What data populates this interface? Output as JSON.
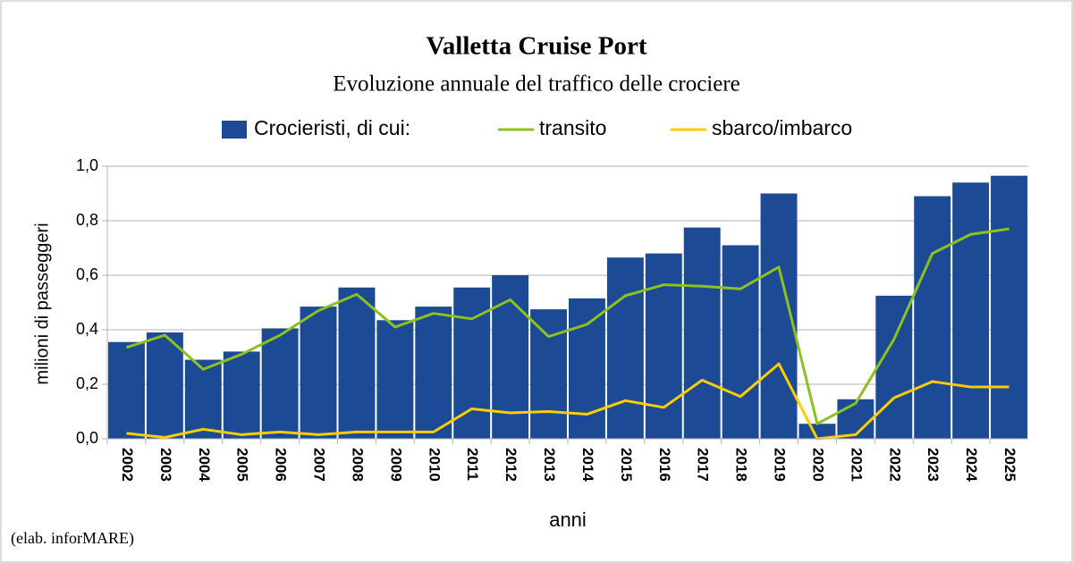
{
  "chart_data": {
    "type": "bar",
    "title": "Valletta Cruise Port",
    "subtitle": "Evoluzione annuale del traffico delle crociere",
    "y_label": "milioni di passeggeri",
    "x_label": "anni",
    "source": "(elab. inforMARE)",
    "categories": [
      "2002",
      "2003",
      "2004",
      "2005",
      "2006",
      "2007",
      "2008",
      "2009",
      "2010",
      "2011",
      "2012",
      "2013",
      "2014",
      "2015",
      "2016",
      "2017",
      "2018",
      "2019",
      "2020",
      "2021",
      "2022",
      "2023",
      "2024",
      "2025"
    ],
    "series": [
      {
        "name": "Crocieristi, di cui:",
        "type": "bar",
        "color": "#1c4a94",
        "values": [
          0.355,
          0.39,
          0.29,
          0.32,
          0.405,
          0.485,
          0.555,
          0.435,
          0.485,
          0.555,
          0.6,
          0.475,
          0.515,
          0.665,
          0.68,
          0.775,
          0.71,
          0.9,
          0.055,
          0.145,
          0.525,
          0.89,
          0.94,
          0.965
        ]
      },
      {
        "name": "transito",
        "type": "line",
        "color": "#8cc11f",
        "values": [
          0.335,
          0.38,
          0.255,
          0.31,
          0.38,
          0.47,
          0.53,
          0.41,
          0.46,
          0.44,
          0.51,
          0.375,
          0.42,
          0.525,
          0.565,
          0.56,
          0.55,
          0.63,
          0.055,
          0.13,
          0.365,
          0.68,
          0.75,
          0.77
        ]
      },
      {
        "name": "sbarco/imbarco",
        "type": "line",
        "color": "#ffcc00",
        "values": [
          0.02,
          0.005,
          0.035,
          0.015,
          0.025,
          0.015,
          0.025,
          0.025,
          0.025,
          0.11,
          0.095,
          0.1,
          0.09,
          0.14,
          0.115,
          0.215,
          0.155,
          0.275,
          0.0,
          0.015,
          0.15,
          0.21,
          0.19,
          0.19
        ]
      }
    ],
    "ylim": [
      0,
      1
    ],
    "yticks": [
      {
        "value": 0,
        "label": "0,0"
      },
      {
        "value": 0.2,
        "label": "0,2"
      },
      {
        "value": 0.4,
        "label": "0,4"
      },
      {
        "value": 0.6,
        "label": "0,6"
      },
      {
        "value": 0.8,
        "label": "0,8"
      },
      {
        "value": 1,
        "label": "1,0"
      }
    ],
    "grid": true,
    "legend": "top"
  }
}
